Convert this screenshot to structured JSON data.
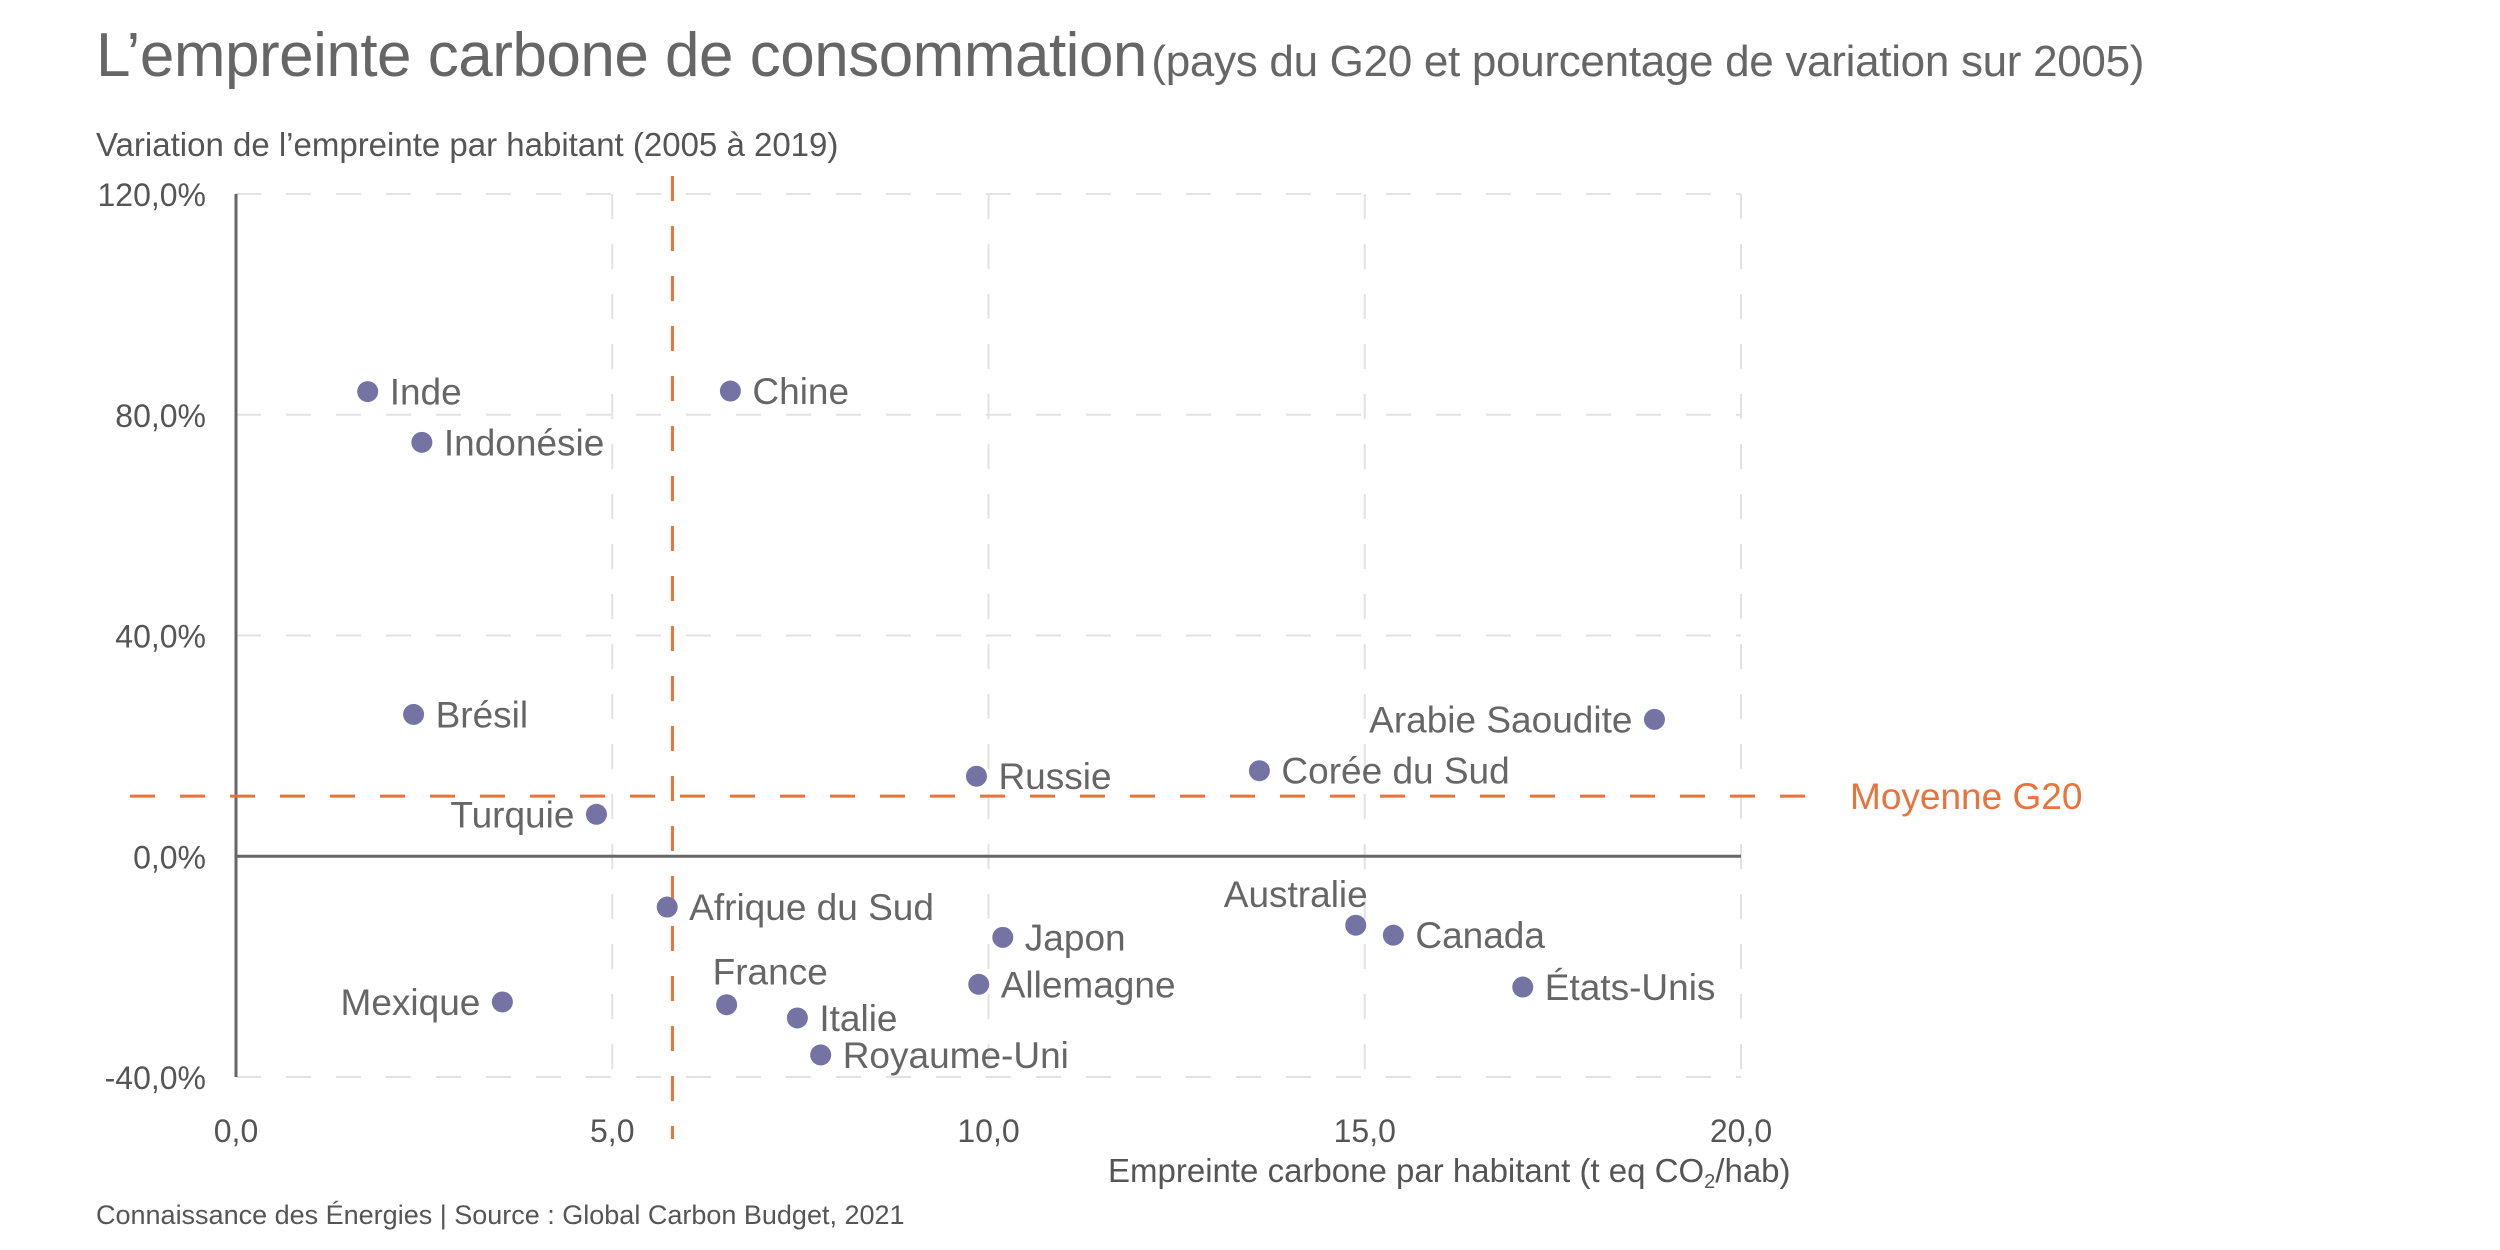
{
  "header": {
    "title_main": "L’empreinte carbone de consommation",
    "title_sub": "(pays du G20 et pourcentage de variation sur 2005)"
  },
  "footer": {
    "source": "Connaissance des Énergies | Source : Global Carbon Budget, 2021"
  },
  "chart_data": {
    "type": "scatter",
    "title": "L’empreinte carbone de consommation (pays du G20 et pourcentage de variation sur 2005)",
    "xlabel_prefix": "Empreinte carbone par habitant (t eq CO",
    "xlabel_sub": "2",
    "xlabel_suffix": "/hab)",
    "ylabel": "Variation de l’empreinte par habitant (2005 à 2019)",
    "xlim": [
      0,
      20
    ],
    "ylim": [
      -40,
      120
    ],
    "x_ticks": [
      0,
      5,
      10,
      15,
      20
    ],
    "x_tick_labels": [
      "0,0",
      "5,0",
      "10,0",
      "15,0",
      "20,0"
    ],
    "y_ticks": [
      -40,
      0,
      40,
      80,
      120
    ],
    "y_tick_labels": [
      "-40,0%",
      "0,0%",
      "40,0%",
      "80,0%",
      "120,0%"
    ],
    "grid": true,
    "colors": {
      "points": "#7473a3",
      "mean": "#e8743b",
      "grid": "#e2e2e2",
      "axis": "#666666"
    },
    "mean": {
      "label": "Moyenne G20",
      "x": 5.8,
      "y": 10.9
    },
    "points": [
      {
        "name": "Inde",
        "x": 1.75,
        "y": 84.2,
        "label_pos": "right"
      },
      {
        "name": "Indonésie",
        "x": 2.47,
        "y": 75.0,
        "label_pos": "right"
      },
      {
        "name": "Chine",
        "x": 6.57,
        "y": 84.3,
        "label_pos": "right"
      },
      {
        "name": "Brésil",
        "x": 2.36,
        "y": 25.7,
        "label_pos": "right"
      },
      {
        "name": "Turquie",
        "x": 4.79,
        "y": 7.6,
        "label_pos": "left"
      },
      {
        "name": "Russie",
        "x": 9.84,
        "y": 14.5,
        "label_pos": "right"
      },
      {
        "name": "Corée du Sud",
        "x": 13.6,
        "y": 15.5,
        "label_pos": "right"
      },
      {
        "name": "Arabie Saoudite",
        "x": 18.85,
        "y": 24.8,
        "label_pos": "left"
      },
      {
        "name": "Afrique du Sud",
        "x": 5.73,
        "y": -9.2,
        "label_pos": "right"
      },
      {
        "name": "Japon",
        "x": 10.19,
        "y": -14.7,
        "label_pos": "right"
      },
      {
        "name": "Allemagne",
        "x": 9.87,
        "y": -23.2,
        "label_pos": "right"
      },
      {
        "name": "France",
        "x": 6.52,
        "y": -26.9,
        "label_pos": "above"
      },
      {
        "name": "Italie",
        "x": 7.46,
        "y": -29.3,
        "label_pos": "right"
      },
      {
        "name": "Royaume-Uni",
        "x": 7.77,
        "y": -36.0,
        "label_pos": "right"
      },
      {
        "name": "Mexique",
        "x": 3.54,
        "y": -26.4,
        "label_pos": "left"
      },
      {
        "name": "Australie",
        "x": 14.88,
        "y": -12.5,
        "label_pos": "above"
      },
      {
        "name": "Canada",
        "x": 15.38,
        "y": -14.3,
        "label_pos": "right"
      },
      {
        "name": "États-Unis",
        "x": 17.1,
        "y": -23.7,
        "label_pos": "right"
      }
    ]
  }
}
